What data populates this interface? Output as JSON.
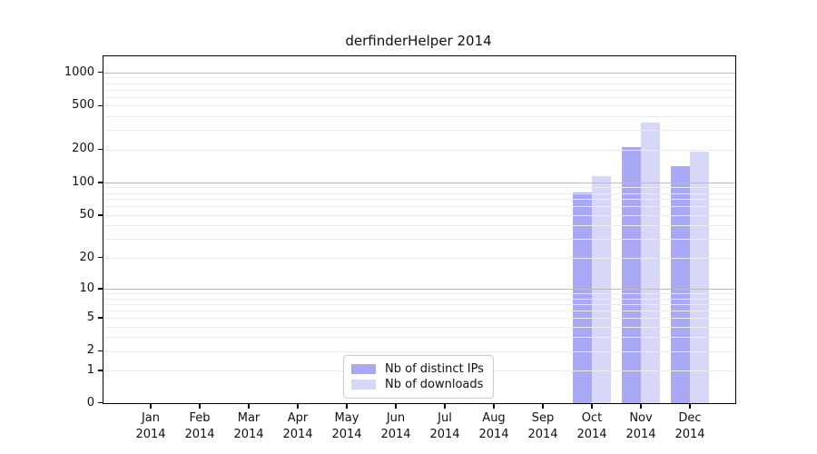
{
  "chart_data": {
    "type": "bar",
    "title": "derfinderHelper 2014",
    "categories": [
      {
        "month": "Jan",
        "year": "2014"
      },
      {
        "month": "Feb",
        "year": "2014"
      },
      {
        "month": "Mar",
        "year": "2014"
      },
      {
        "month": "Apr",
        "year": "2014"
      },
      {
        "month": "May",
        "year": "2014"
      },
      {
        "month": "Jun",
        "year": "2014"
      },
      {
        "month": "Jul",
        "year": "2014"
      },
      {
        "month": "Aug",
        "year": "2014"
      },
      {
        "month": "Sep",
        "year": "2014"
      },
      {
        "month": "Oct",
        "year": "2014"
      },
      {
        "month": "Nov",
        "year": "2014"
      },
      {
        "month": "Dec",
        "year": "2014"
      }
    ],
    "series": [
      {
        "name": "Nb of distinct IPs",
        "color": "#a8a8f5",
        "values": [
          0,
          0,
          0,
          0,
          0,
          0,
          0,
          0,
          0,
          80,
          210,
          140
        ]
      },
      {
        "name": "Nb of downloads",
        "color": "#d7d7f8",
        "values": [
          0,
          0,
          0,
          0,
          0,
          0,
          0,
          0,
          0,
          115,
          350,
          190
        ]
      }
    ],
    "yticks": [
      0,
      1,
      2,
      5,
      10,
      20,
      50,
      100,
      200,
      500,
      1000
    ],
    "yscale": "log1p",
    "ylim": [
      0,
      1400
    ],
    "grid": "horizontal",
    "legend_position": "bottom-center-inside",
    "colors": {
      "axis": "#000000",
      "major_grid": "#bbbbbb",
      "minor_grid": "#ececec",
      "text": "#111111"
    }
  }
}
